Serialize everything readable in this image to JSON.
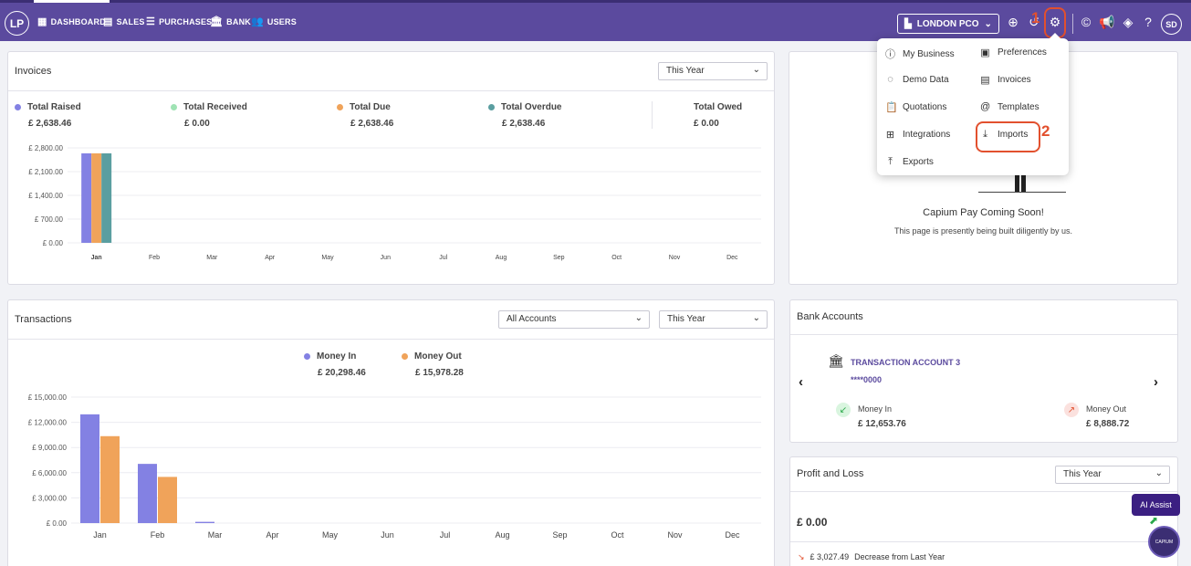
{
  "topbar": {
    "logo": "LP",
    "tabs": [
      {
        "label": "DASHBOARD",
        "icon": "grid-icon"
      },
      {
        "label": "SALES",
        "icon": "register-icon"
      },
      {
        "label": "PURCHASES",
        "icon": "list-icon"
      },
      {
        "label": "BANK",
        "icon": "bank-icon"
      },
      {
        "label": "USERS",
        "icon": "users-icon"
      }
    ],
    "company": "LONDON PCO",
    "avatar": "SD",
    "annotation_1": "1",
    "annotation_2": "2"
  },
  "settings_menu": {
    "items": [
      {
        "label": "My Business",
        "icon": "info-icon"
      },
      {
        "label": "Preferences",
        "icon": "preferences-icon"
      },
      {
        "label": "Demo Data",
        "icon": "loading-icon"
      },
      {
        "label": "Invoices",
        "icon": "document-icon"
      },
      {
        "label": "Quotations",
        "icon": "clipboard-icon"
      },
      {
        "label": "Templates",
        "icon": "at-icon"
      },
      {
        "label": "Integrations",
        "icon": "integrations-icon"
      },
      {
        "label": "Imports",
        "icon": "import-icon"
      },
      {
        "label": "Exports",
        "icon": "export-icon"
      }
    ]
  },
  "invoices": {
    "title": "Invoices",
    "period": "This Year",
    "stats": [
      {
        "label": "Total Raised",
        "value": "£ 2,638.46",
        "color": "#8381e3"
      },
      {
        "label": "Total Received",
        "value": "£ 0.00",
        "color": "#9fe3b4"
      },
      {
        "label": "Total Due",
        "value": "£ 2,638.46",
        "color": "#f0a35a"
      },
      {
        "label": "Total Overdue",
        "value": "£ 2,638.46",
        "color": "#5a9ea0"
      },
      {
        "label": "Total Owed",
        "value": "£ 0.00",
        "color": null
      }
    ]
  },
  "capium_pay": {
    "title": "Capium Pay Coming Soon!",
    "subtitle": "This page is presently being built diligently by us."
  },
  "transactions": {
    "title": "Transactions",
    "account_filter": "All Accounts",
    "period": "This Year",
    "stats": [
      {
        "label": "Money In",
        "value": "£ 20,298.46",
        "color": "#8381e3"
      },
      {
        "label": "Money Out",
        "value": "£ 15,978.28",
        "color": "#f0a35a"
      }
    ]
  },
  "bank_accounts": {
    "title": "Bank Accounts",
    "account_name": "TRANSACTION ACCOUNT 3",
    "account_number": "****0000",
    "money_in_label": "Money In",
    "money_in_value": "£ 12,653.76",
    "money_out_label": "Money Out",
    "money_out_value": "£ 8,888.72"
  },
  "profit_loss": {
    "title": "Profit and Loss",
    "period": "This Year",
    "value": "£ 0.00",
    "change_value": "£ 3,027.49",
    "change_text": "Decrease from Last Year"
  },
  "ai_assist": "AI Assist",
  "capium_logo": "CAPIUM",
  "chart_data": [
    {
      "type": "bar",
      "categories": [
        "Jan",
        "Feb",
        "Mar",
        "Apr",
        "May",
        "Jun",
        "Jul",
        "Aug",
        "Sep",
        "Oct",
        "Nov",
        "Dec"
      ],
      "series": [
        {
          "name": "Total Raised",
          "color": "#8381e3",
          "values": [
            2638.46,
            0,
            0,
            0,
            0,
            0,
            0,
            0,
            0,
            0,
            0,
            0
          ]
        },
        {
          "name": "Total Received",
          "color": "#9fe3b4",
          "values": [
            0,
            0,
            0,
            0,
            0,
            0,
            0,
            0,
            0,
            0,
            0,
            0
          ]
        },
        {
          "name": "Total Due",
          "color": "#f0a35a",
          "values": [
            2638.46,
            0,
            0,
            0,
            0,
            0,
            0,
            0,
            0,
            0,
            0,
            0
          ]
        },
        {
          "name": "Total Overdue",
          "color": "#5a9ea0",
          "values": [
            2638.46,
            0,
            0,
            0,
            0,
            0,
            0,
            0,
            0,
            0,
            0,
            0
          ]
        }
      ],
      "ylim": [
        0,
        2800
      ],
      "yticks": [
        0,
        700,
        1400,
        2100,
        2800
      ],
      "ytick_labels": [
        "£ 0.00",
        "£ 700.00",
        "£ 1,400.00",
        "£ 2,100.00",
        "£ 2,800.00"
      ],
      "grid": true
    },
    {
      "type": "bar",
      "categories": [
        "Jan",
        "Feb",
        "Mar",
        "Apr",
        "May",
        "Jun",
        "Jul",
        "Aug",
        "Sep",
        "Oct",
        "Nov",
        "Dec"
      ],
      "series": [
        {
          "name": "Money In",
          "color": "#8381e3",
          "values": [
            12950,
            7050,
            150,
            0,
            0,
            0,
            0,
            0,
            0,
            0,
            0,
            0
          ]
        },
        {
          "name": "Money Out",
          "color": "#f0a35a",
          "values": [
            10350,
            5500,
            0,
            0,
            0,
            0,
            0,
            0,
            0,
            0,
            0,
            0
          ]
        }
      ],
      "ylim": [
        0,
        15000
      ],
      "yticks": [
        0,
        3000,
        6000,
        9000,
        12000,
        15000
      ],
      "ytick_labels": [
        "£ 0.00",
        "£ 3,000.00",
        "£ 6,000.00",
        "£ 9,000.00",
        "£ 12,000.00",
        "£ 15,000.00"
      ],
      "grid": true
    }
  ]
}
